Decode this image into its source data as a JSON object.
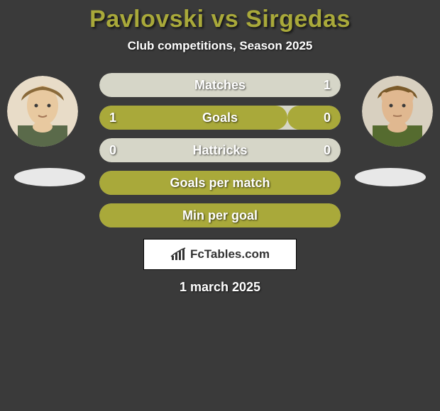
{
  "colors": {
    "background": "#3a3a3a",
    "title": "#a9a93a",
    "barFill": "#a9a93a",
    "barEmpty": "#d6d6c8",
    "text": "#ffffff",
    "logoBg": "#ffffff",
    "logoText": "#333333",
    "avatarLeftTop": "#d9c9a8",
    "avatarLeftBottom": "#5a6a4a",
    "avatarRightTop": "#c8a878",
    "avatarRightBottom": "#556b2f"
  },
  "title": "Pavlovski vs Sirgedas",
  "subtitle": "Club competitions, Season 2025",
  "date": "1 march 2025",
  "logo": "FcTables.com",
  "bars": [
    {
      "label": "Matches",
      "leftVal": "",
      "rightVal": "1",
      "leftPct": 0,
      "rightPct": 100,
      "showVals": "right"
    },
    {
      "label": "Goals",
      "leftVal": "1",
      "rightVal": "0",
      "leftPct": 78,
      "rightPct": 22,
      "showVals": "both"
    },
    {
      "label": "Hattricks",
      "leftVal": "0",
      "rightVal": "0",
      "leftPct": 0,
      "rightPct": 0,
      "showVals": "both"
    },
    {
      "label": "Goals per match",
      "leftVal": "",
      "rightVal": "",
      "leftPct": 100,
      "rightPct": 100,
      "showVals": "none"
    },
    {
      "label": "Min per goal",
      "leftVal": "",
      "rightVal": "",
      "leftPct": 100,
      "rightPct": 100,
      "showVals": "none"
    }
  ]
}
